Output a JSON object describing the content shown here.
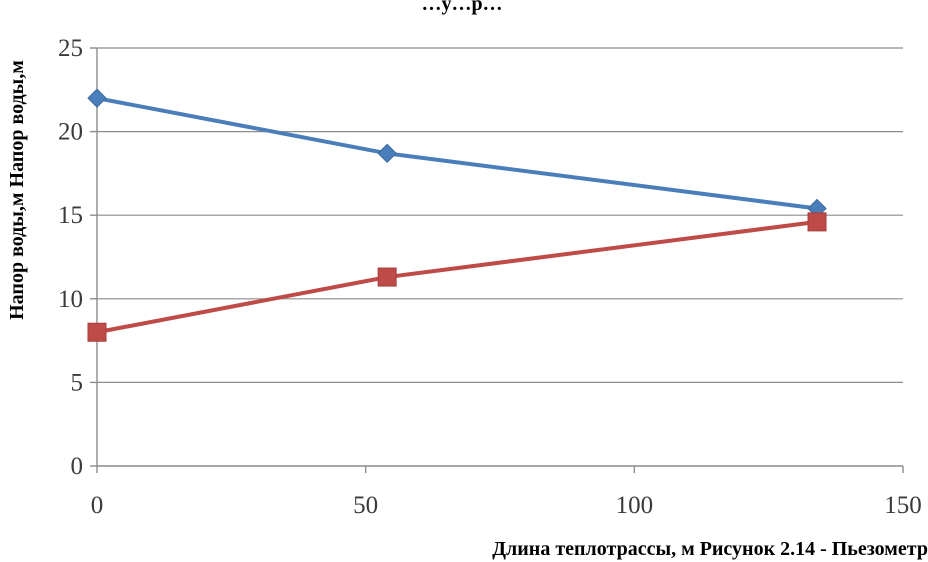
{
  "chart_data": {
    "type": "line",
    "title": "…у…р…",
    "xlabel": "Длина теплотрассы, м Рисунок 2.14 - Пьезометр",
    "ylabel": "Напор воды,м Напор воды,м",
    "xlim": [
      0,
      150
    ],
    "ylim": [
      0,
      25
    ],
    "x_ticks": [
      "0",
      "50",
      "100",
      "150"
    ],
    "y_ticks": [
      "0",
      "5",
      "10",
      "15",
      "20",
      "25"
    ],
    "grid": "horizontal",
    "series": [
      {
        "color": "#4a7ebb",
        "marker": "diamond",
        "x": [
          0,
          54,
          134
        ],
        "y": [
          22.0,
          18.7,
          15.4
        ]
      },
      {
        "color": "#be4b48",
        "marker": "square",
        "x": [
          0,
          54,
          134
        ],
        "y": [
          8.0,
          11.3,
          14.6
        ]
      }
    ]
  }
}
